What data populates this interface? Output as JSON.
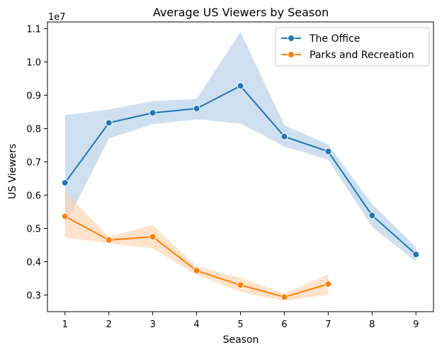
{
  "chart_data": {
    "type": "line",
    "title": "Average US Viewers by Season",
    "xlabel": "Season",
    "ylabel": "US Viewers",
    "y_offset_label": "1e7",
    "x": [
      1,
      2,
      3,
      4,
      5,
      6,
      7,
      8,
      9
    ],
    "x_ticks": [
      "1",
      "2",
      "3",
      "4",
      "5",
      "6",
      "7",
      "8",
      "9"
    ],
    "y_ticks": [
      {
        "value": 0.3,
        "label": "0.3"
      },
      {
        "value": 0.4,
        "label": "0.4"
      },
      {
        "value": 0.5,
        "label": "0.5"
      },
      {
        "value": 0.6,
        "label": "0.6"
      },
      {
        "value": 0.7,
        "label": "0.7"
      },
      {
        "value": 0.8,
        "label": "0.8"
      },
      {
        "value": 0.9,
        "label": "0.9"
      },
      {
        "value": 1.0,
        "label": "1.0"
      },
      {
        "value": 1.1,
        "label": "1.1"
      }
    ],
    "xlim": [
      0.6,
      9.4
    ],
    "ylim": [
      0.25,
      1.12
    ],
    "grid": false,
    "legend_position": "top-right",
    "series": [
      {
        "name": "The Office",
        "color": "#1f77b4",
        "band_color": "#aecbe6",
        "x": [
          1,
          2,
          3,
          4,
          5,
          6,
          7,
          8,
          9
        ],
        "values": [
          0.637,
          0.817,
          0.847,
          0.86,
          0.928,
          0.776,
          0.731,
          0.539,
          0.422
        ],
        "ci_lower": [
          0.51,
          0.77,
          0.813,
          0.828,
          0.815,
          0.746,
          0.706,
          0.505,
          0.4
        ],
        "ci_upper": [
          0.84,
          0.857,
          0.882,
          0.889,
          1.09,
          0.81,
          0.752,
          0.573,
          0.444
        ]
      },
      {
        "name": "Parks and Recreation",
        "color": "#ff7f0e",
        "band_color": "#fdd0a8",
        "x": [
          1,
          2,
          3,
          4,
          5,
          6,
          7
        ],
        "values": [
          0.536,
          0.465,
          0.475,
          0.373,
          0.33,
          0.294,
          0.333
        ],
        "ci_lower": [
          0.473,
          0.455,
          0.44,
          0.36,
          0.31,
          0.282,
          0.302
        ],
        "ci_upper": [
          0.61,
          0.475,
          0.51,
          0.386,
          0.352,
          0.304,
          0.362
        ]
      }
    ]
  }
}
